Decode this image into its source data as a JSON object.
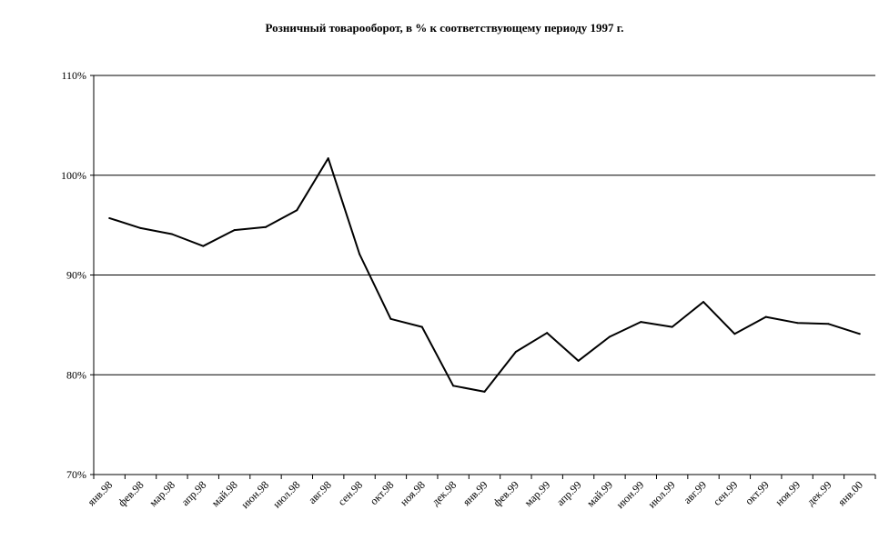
{
  "chart_data": {
    "type": "line",
    "title": "Розничный товарооборот,  в % к соответствующему периоду 1997 г.",
    "xlabel": "",
    "ylabel": "",
    "ylim": [
      70,
      110
    ],
    "y_ticks": [
      70,
      80,
      90,
      100,
      110
    ],
    "y_tick_labels": [
      "70%",
      "80%",
      "90%",
      "100%",
      "110%"
    ],
    "grid": "horizontal",
    "legend": "none",
    "line_color": "#000000",
    "categories": [
      "янв.98",
      "фев.98",
      "мар.98",
      "апр.98",
      "май.98",
      "июн.98",
      "июл.98",
      "авг.98",
      "сен.98",
      "окт.98",
      "ноя.98",
      "дек.98",
      "янв.99",
      "фев.99",
      "мар.99",
      "апр.99",
      "май.99",
      "июн.99",
      "июл.99",
      "авг.99",
      "сен.99",
      "окт.99",
      "ноя.99",
      "дек.99",
      "янв.00"
    ],
    "series": [
      {
        "values": [
          95.7,
          94.7,
          94.1,
          92.9,
          94.5,
          94.8,
          96.5,
          101.7,
          92.1,
          85.6,
          84.8,
          78.9,
          78.3,
          82.3,
          84.2,
          81.4,
          83.8,
          85.3,
          84.8,
          87.3,
          84.1,
          85.8,
          85.2,
          85.1,
          84.1
        ]
      }
    ]
  }
}
